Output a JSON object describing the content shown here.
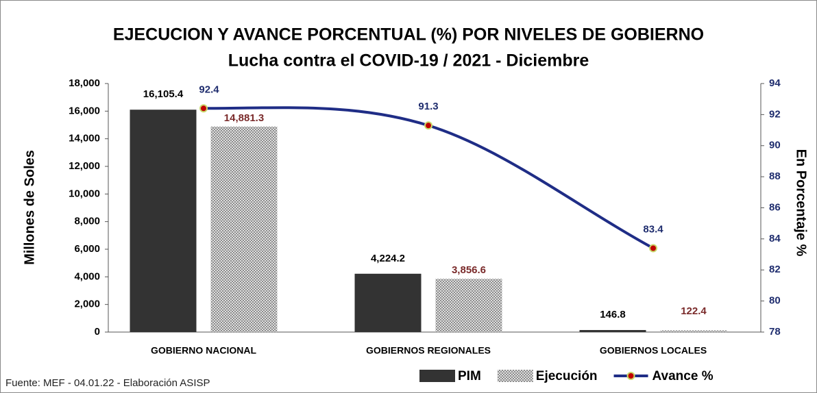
{
  "chart_data": {
    "type": "bar_line",
    "title": "EJECUCION Y AVANCE PORCENTUAL (%) POR NIVELES DE GOBIERNO",
    "subtitle": "Lucha contra el COVID-19 / 2021 - Diciembre",
    "y_label": "Millones de Soles",
    "y2_label": "En Porcentaje %",
    "source": "Fuente: MEF - 04.01.22 - Elaboración ASISP",
    "categories": [
      "GOBIERNO NACIONAL",
      "GOBIERNOS REGIONALES",
      "GOBIERNOS LOCALES"
    ],
    "series": [
      {
        "name": "PIM",
        "type": "bar",
        "color": "#333333",
        "values": [
          16105.4,
          4224.2,
          146.8
        ],
        "value_labels": [
          "16,105.4",
          "4,224.2",
          "146.8"
        ]
      },
      {
        "name": "Ejecución",
        "type": "bar",
        "color": "#8c8c8c",
        "pattern": "checker",
        "values": [
          14881.3,
          3856.6,
          122.4
        ],
        "value_labels": [
          "14,881.3",
          "3,856.6",
          "122.4"
        ]
      },
      {
        "name": "Avance %",
        "type": "line",
        "axis": "y2",
        "color": "#1f2d86",
        "marker_color": "#c00000",
        "values": [
          92.4,
          91.3,
          83.4
        ]
      }
    ],
    "ylim": [
      0,
      18000
    ],
    "yticks": [
      {
        "value": 0,
        "label": "0"
      },
      {
        "value": 2000,
        "label": "2,000"
      },
      {
        "value": 4000,
        "label": "4,000"
      },
      {
        "value": 6000,
        "label": "6,000"
      },
      {
        "value": 8000,
        "label": "8,000"
      },
      {
        "value": 10000,
        "label": "10,000"
      },
      {
        "value": 12000,
        "label": "12,000"
      },
      {
        "value": 14000,
        "label": "14,000"
      },
      {
        "value": 16000,
        "label": "16,000"
      },
      {
        "value": 18000,
        "label": "18,000"
      }
    ],
    "y2lim": [
      78,
      94
    ],
    "y2ticks": [
      78,
      80,
      82,
      84,
      86,
      88,
      90,
      92,
      94
    ],
    "legend": "bottom"
  }
}
